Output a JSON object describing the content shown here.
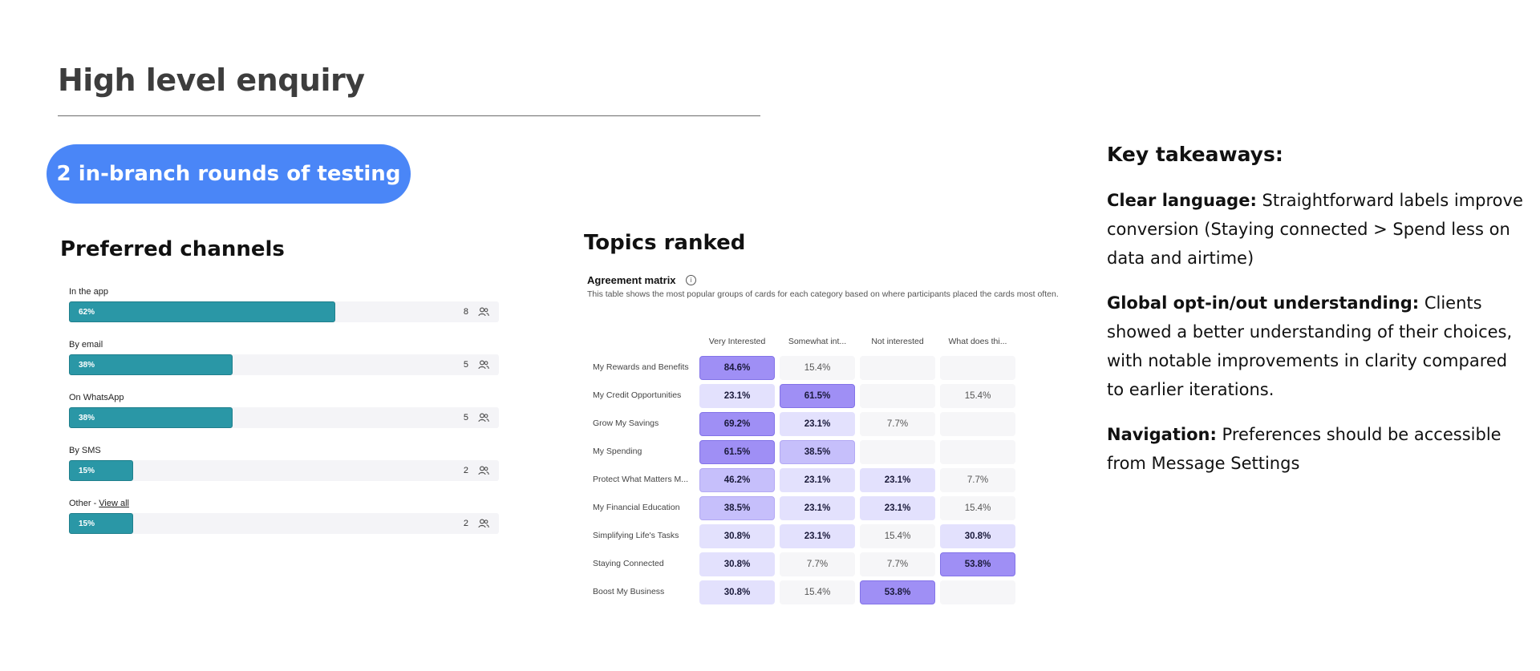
{
  "header": {
    "title": "High level enquiry"
  },
  "pill": {
    "label": "2 in-branch rounds of testing"
  },
  "channels": {
    "heading": "Preferred channels",
    "items": [
      {
        "label": "In the app",
        "pct": "62%",
        "value": 62,
        "count": "8"
      },
      {
        "label": "By email",
        "pct": "38%",
        "value": 38,
        "count": "5"
      },
      {
        "label": "On WhatsApp",
        "pct": "38%",
        "value": 38,
        "count": "5"
      },
      {
        "label": "By SMS",
        "pct": "15%",
        "value": 15,
        "count": "2"
      },
      {
        "label": "Other - ",
        "link": "View all",
        "pct": "15%",
        "value": 15,
        "count": "2"
      }
    ],
    "icon": "people-icon"
  },
  "topics": {
    "heading": "Topics ranked",
    "matrix_title": "Agreement matrix",
    "matrix_desc": "This table shows the most popular groups of cards for each category based on where participants placed the cards most often.",
    "icon": "info-icon"
  },
  "chart_data": [
    {
      "type": "bar",
      "orientation": "horizontal",
      "title": "Preferred channels",
      "categories": [
        "In the app",
        "By email",
        "On WhatsApp",
        "By SMS",
        "Other"
      ],
      "values": [
        62,
        38,
        38,
        15,
        15
      ],
      "counts": [
        8,
        5,
        5,
        2,
        2
      ],
      "xlim": [
        0,
        100
      ]
    },
    {
      "type": "heatmap",
      "title": "Agreement matrix",
      "columns": [
        "Very Interested",
        "Somewhat int...",
        "Not interested",
        "What does thi..."
      ],
      "rows": [
        "My Rewards and Benefits",
        "My Credit Opportunities",
        "Grow My Savings",
        "My Spending",
        "Protect What Matters M...",
        "My Financial Education",
        "Simplifying Life's Tasks",
        "Staying Connected",
        "Boost My Business"
      ],
      "cells": [
        [
          "84.6%",
          "15.4%",
          "",
          ""
        ],
        [
          "23.1%",
          "61.5%",
          "",
          "15.4%"
        ],
        [
          "69.2%",
          "23.1%",
          "7.7%",
          ""
        ],
        [
          "61.5%",
          "38.5%",
          "",
          ""
        ],
        [
          "46.2%",
          "23.1%",
          "23.1%",
          "7.7%"
        ],
        [
          "38.5%",
          "23.1%",
          "23.1%",
          "15.4%"
        ],
        [
          "30.8%",
          "23.1%",
          "15.4%",
          "30.8%"
        ],
        [
          "30.8%",
          "7.7%",
          "7.7%",
          "53.8%"
        ],
        [
          "30.8%",
          "15.4%",
          "53.8%",
          ""
        ]
      ]
    }
  ],
  "takeaways": {
    "heading": "Key takeaways:",
    "items": [
      {
        "bold": "Clear language:",
        "text": " Straightforward labels improve conversion (Staying connected > Spend less on data and airtime)"
      },
      {
        "bold": "Global opt-in/out understanding:",
        "text": " Clients showed a better understanding of their choices, with notable improvements in clarity compared to earlier iterations."
      },
      {
        "bold": "Navigation:",
        "text": " Preferences should be accessible from Message Settings"
      }
    ]
  }
}
